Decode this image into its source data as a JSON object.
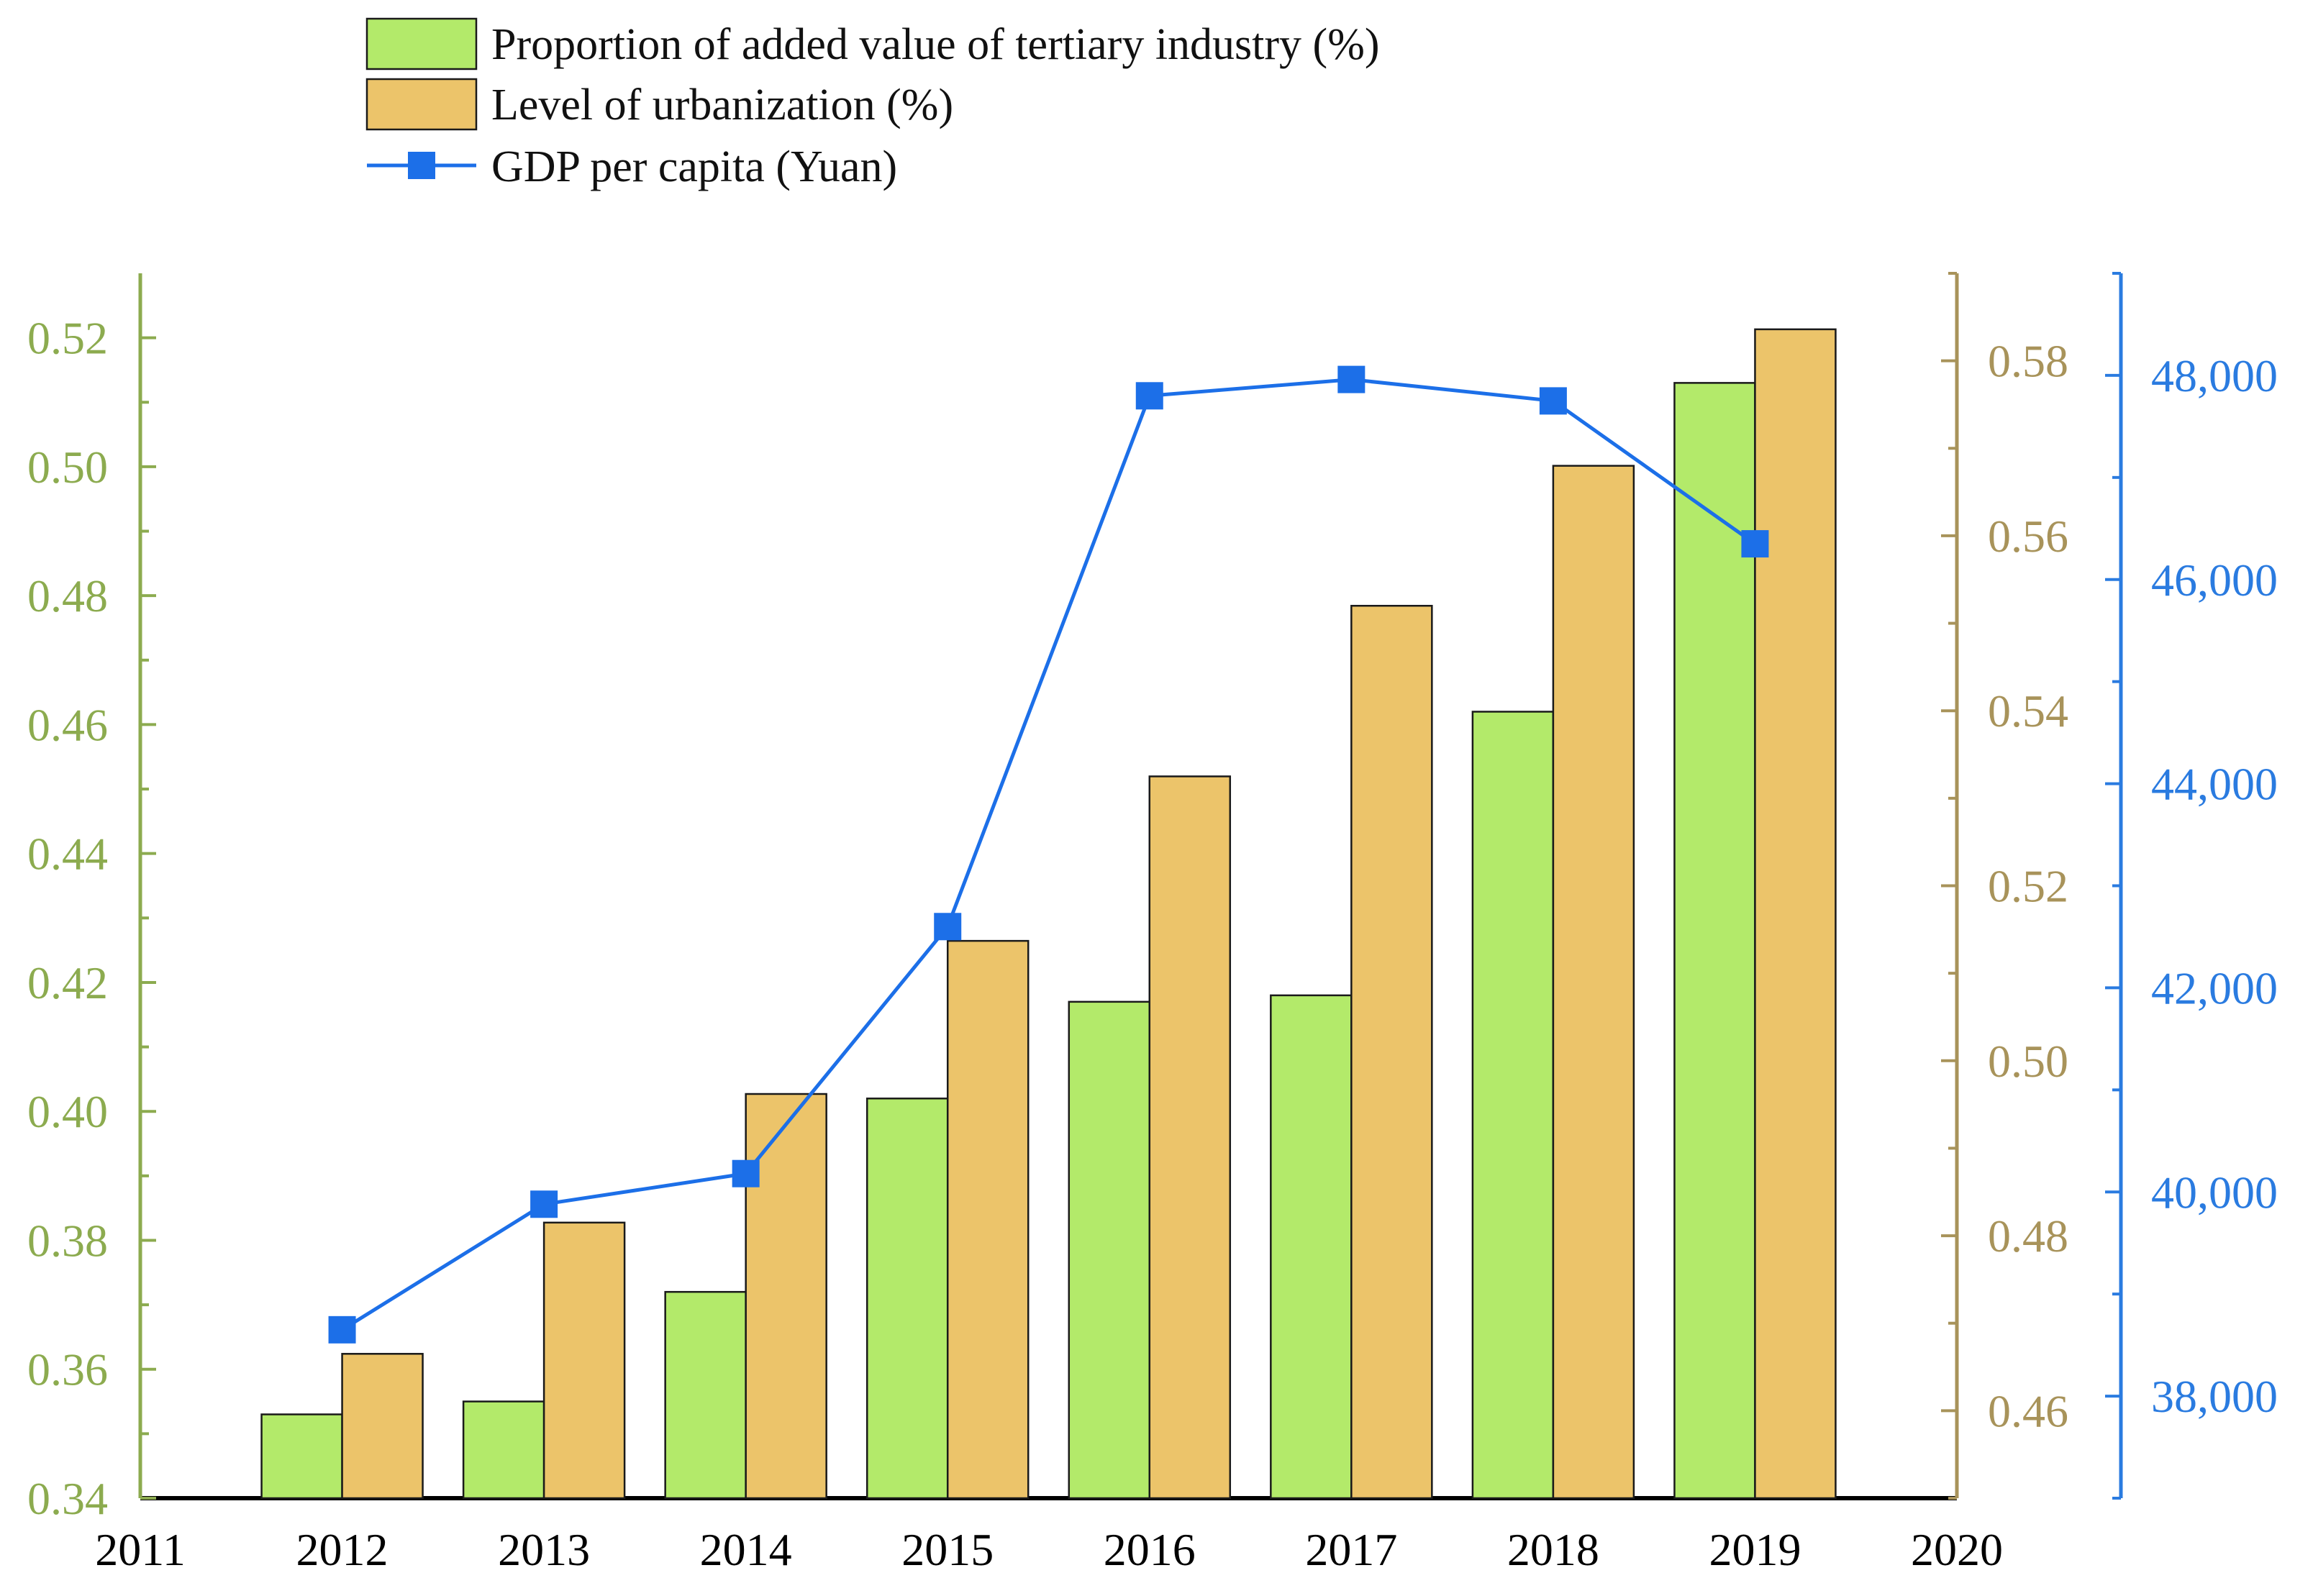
{
  "chart_data": {
    "type": "bar",
    "title": "",
    "xlabel": "",
    "categories": [
      "2012",
      "2013",
      "2014",
      "2015",
      "2016",
      "2017",
      "2018",
      "2019"
    ],
    "x_axis": {
      "min": 2011,
      "max": 2020,
      "tick_labels": [
        "2011",
        "2012",
        "2013",
        "2014",
        "2015",
        "2016",
        "2017",
        "2018",
        "2019",
        "2020"
      ]
    },
    "series": [
      {
        "name": "Proportion of added value of tertiary industry (%)",
        "type": "bar",
        "axis": "left",
        "color": "#b3ea6a",
        "values": [
          0.353,
          0.355,
          0.372,
          0.402,
          0.417,
          0.418,
          0.462,
          0.513
        ]
      },
      {
        "name": "Level of urbanization (%)",
        "type": "bar",
        "axis": "right1",
        "color": "#ecc46a",
        "values": [
          0.4665,
          0.4815,
          0.4962,
          0.5137,
          0.5325,
          0.552,
          0.568,
          0.5836
        ]
      },
      {
        "name": "GDP per capita (Yuan)",
        "type": "line",
        "axis": "right2",
        "color": "#1c6fe8",
        "values": [
          38650,
          39880,
          40180,
          42600,
          47800,
          47960,
          47750,
          46350
        ]
      }
    ],
    "axes": {
      "left": {
        "ylim": [
          0.34,
          0.53
        ],
        "color": "#8cab4f",
        "ticks": [
          0.34,
          0.36,
          0.38,
          0.4,
          0.42,
          0.44,
          0.46,
          0.48,
          0.5,
          0.52
        ],
        "tick_labels": [
          "0.34",
          "0.36",
          "0.38",
          "0.40",
          "0.42",
          "0.44",
          "0.46",
          "0.48",
          "0.50",
          "0.52"
        ]
      },
      "right1": {
        "ylim": [
          0.45,
          0.59
        ],
        "color": "#a8935a",
        "ticks": [
          0.46,
          0.48,
          0.5,
          0.52,
          0.54,
          0.56,
          0.58
        ],
        "tick_labels": [
          "0.46",
          "0.48",
          "0.50",
          "0.52",
          "0.54",
          "0.56",
          "0.58"
        ]
      },
      "right2": {
        "ylim": [
          37000,
          49000
        ],
        "color": "#2a7be0",
        "ticks": [
          38000,
          40000,
          42000,
          44000,
          46000,
          48000
        ],
        "tick_labels": [
          "38,000",
          "40,000",
          "42,000",
          "44,000",
          "46,000",
          "48,000"
        ]
      }
    },
    "legend": {
      "position": "top-center",
      "items": [
        "Proportion of added value of tertiary industry (%)",
        "Level of urbanization (%)",
        "GDP per capita (Yuan)"
      ]
    }
  }
}
